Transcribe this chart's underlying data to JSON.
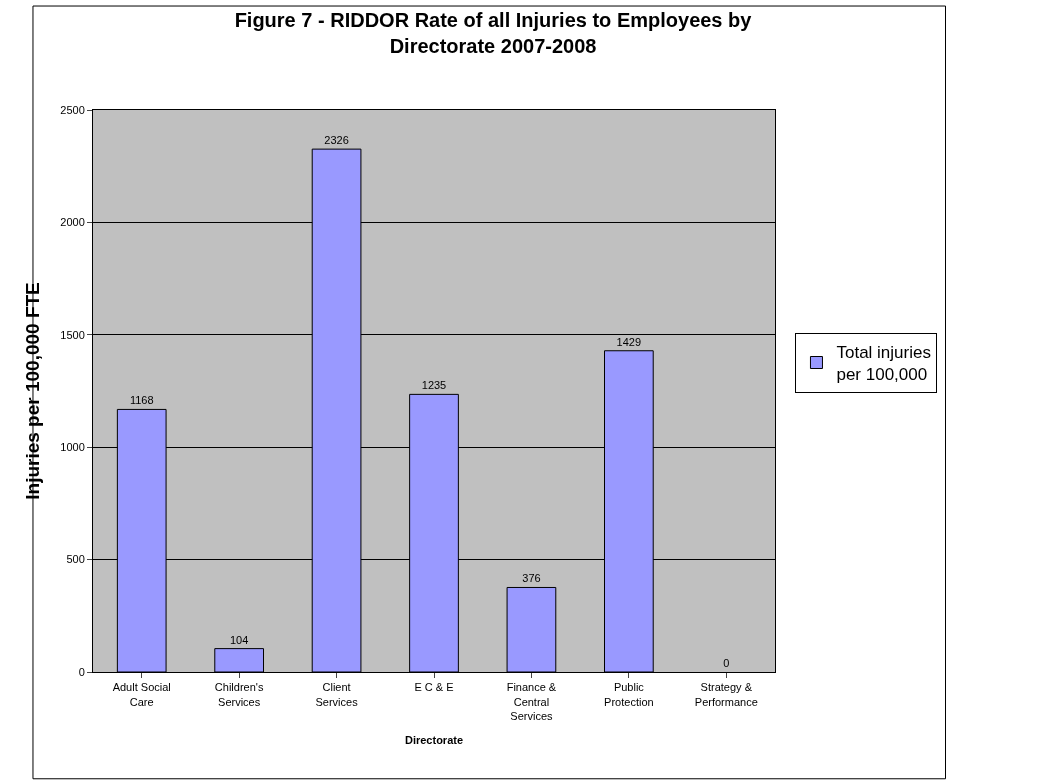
{
  "chart_data": {
    "type": "bar",
    "title": "Figure 7 - RIDDOR Rate of all Injuries to Employees by Directorate 2007-2008",
    "xlabel": "Directorate",
    "ylabel": "Injuries per 100,000 FTE",
    "categories": [
      "Adult Social Care",
      "Children's Services",
      "Client Services",
      "E C & E",
      "Finance & Central Services",
      "Public Protection",
      "Strategy & Performance"
    ],
    "series": [
      {
        "name": "Total injuries per 100,000",
        "color": "#9999ff",
        "values": [
          1168,
          104,
          2326,
          1235,
          376,
          1429,
          0
        ]
      }
    ],
    "ylim": [
      0,
      2500
    ],
    "yticks": [
      0,
      500,
      1000,
      1500,
      2000,
      2500
    ],
    "grid": "y",
    "legend": "right",
    "data_labels": true
  }
}
